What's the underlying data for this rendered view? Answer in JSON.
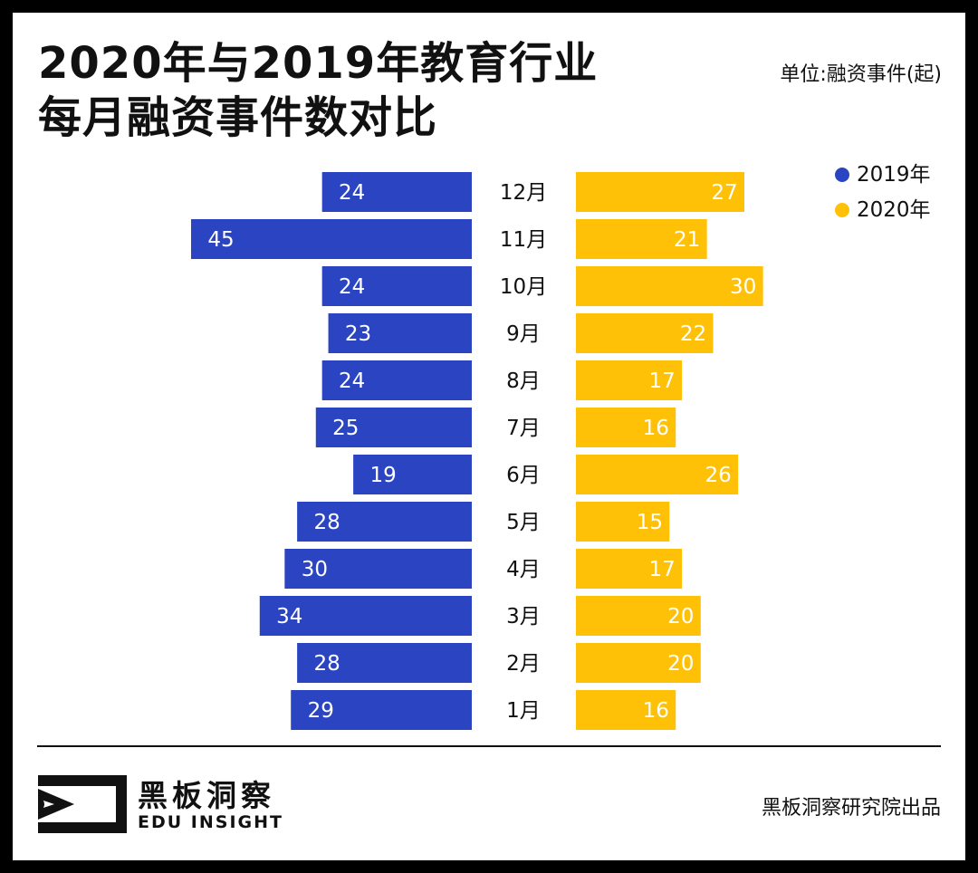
{
  "header": {
    "title_line1": "2020年与2019年教育行业",
    "title_line2": "每月融资事件数对比",
    "unit": "单位:融资事件(起)"
  },
  "chart_data": {
    "type": "bar",
    "orientation": "horizontal-butterfly",
    "title": "2020年与2019年教育行业每月融资事件数对比",
    "categories": [
      "12月",
      "11月",
      "10月",
      "9月",
      "8月",
      "7月",
      "6月",
      "5月",
      "4月",
      "3月",
      "2月",
      "1月"
    ],
    "series": [
      {
        "name": "2019年",
        "color": "#2b45c2",
        "values": [
          24,
          45,
          24,
          23,
          24,
          25,
          19,
          28,
          30,
          34,
          28,
          29
        ]
      },
      {
        "name": "2020年",
        "color": "#ffc107",
        "values": [
          27,
          21,
          30,
          22,
          17,
          16,
          26,
          15,
          17,
          20,
          20,
          16
        ]
      }
    ],
    "legend_position": "top-right",
    "xlim": [
      0,
      45
    ]
  },
  "footer": {
    "brand_cn": "黑板洞察",
    "brand_en": "EDU INSIGHT",
    "credit": "黑板洞察研究院出品"
  },
  "logo": {
    "icon": "eye-bracket-logo-icon"
  }
}
